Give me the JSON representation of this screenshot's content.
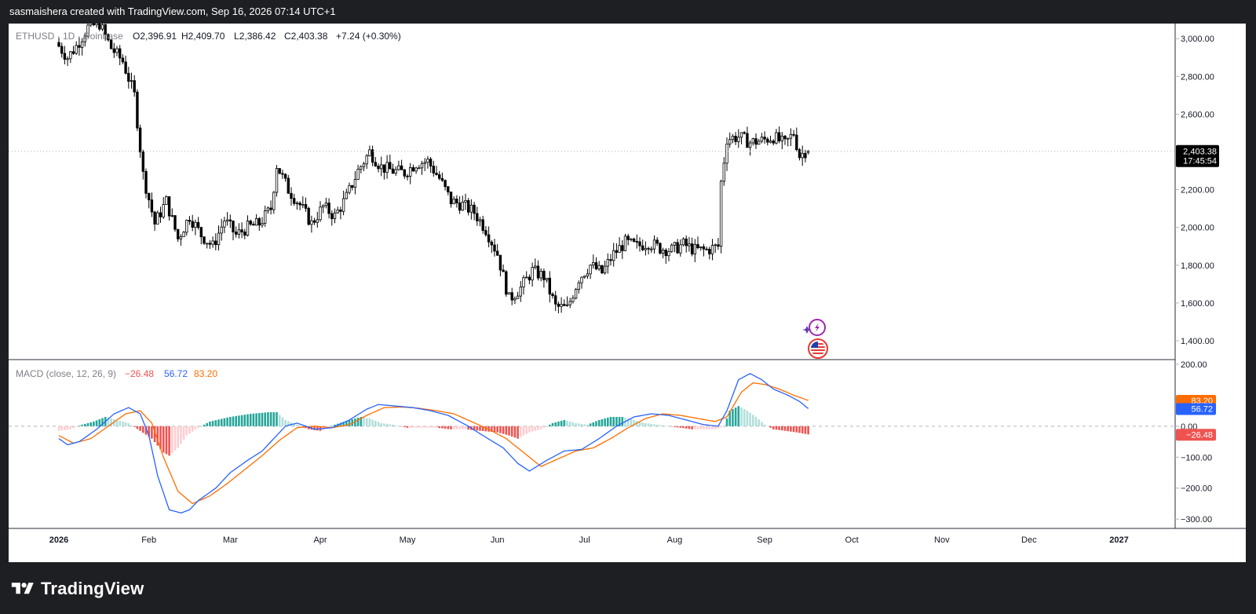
{
  "header": {
    "credit": "sasmaishera created with TradingView.com, Sep 16, 2026 07:14 UTC+1"
  },
  "footer": {
    "brand": "TradingView"
  },
  "legend": {
    "symbol": "ETHUSD · 1D · Coinbase",
    "open_label": "O",
    "open": "2,396.91",
    "high_label": "H",
    "high": "2,409.70",
    "low_label": "L",
    "low": "2,386.42",
    "close_label": "C",
    "close": "2,403.38",
    "change": "+7.24 (+0.30%)"
  },
  "macd_legend": {
    "title": "MACD (close, 12, 26, 9)",
    "hist": "−26.48",
    "macd": "56.72",
    "signal": "83.20"
  },
  "price_marker": {
    "value": "2,403.38",
    "countdown": "17:45:54"
  },
  "colors": {
    "up": "#26a69a",
    "down": "#ef5350",
    "candle": "#000000",
    "macd_line": "#2962ff",
    "signal_line": "#ff6d00",
    "hist_up_strong": "#26a69a",
    "hist_up_weak": "#b2dfdb",
    "hist_down_strong": "#ef5350",
    "hist_down_weak": "#ffcdd2"
  },
  "icons": [
    "lightning-event-icon",
    "us-flag-event-icon"
  ],
  "chart_data": [
    {
      "type": "candlestick",
      "name": "ETHUSD",
      "interval": "1D",
      "exchange": "Coinbase",
      "ylim": [
        1300,
        3080
      ],
      "y_ticks": [
        "3,000.00",
        "2,800.00",
        "2,600.00",
        "2,400.00",
        "2,200.00",
        "2,000.00",
        "1,800.00",
        "1,600.00",
        "1,400.00"
      ],
      "x_ticks": [
        "2026",
        "Feb",
        "Mar",
        "Apr",
        "May",
        "Jun",
        "Jul",
        "Aug",
        "Sep",
        "Oct",
        "Nov",
        "Dec",
        "2027"
      ],
      "anchors": [
        [
          "Jan 1",
          2980
        ],
        [
          "Jan 5",
          2900
        ],
        [
          "Jan 8",
          2960
        ],
        [
          "Jan 12",
          3060
        ],
        [
          "Jan 16",
          3080
        ],
        [
          "Jan 20",
          2950
        ],
        [
          "Jan 24",
          2880
        ],
        [
          "Jan 28",
          2700
        ],
        [
          "Jan 31",
          2280
        ],
        [
          "Feb 4",
          2020
        ],
        [
          "Feb 8",
          2140
        ],
        [
          "Feb 12",
          1940
        ],
        [
          "Feb 16",
          2060
        ],
        [
          "Feb 20",
          1960
        ],
        [
          "Feb 24",
          1900
        ],
        [
          "Feb 28",
          2040
        ],
        [
          "Mar 4",
          1960
        ],
        [
          "Mar 8",
          2000
        ],
        [
          "Mar 12",
          2020
        ],
        [
          "Mar 16",
          2100
        ],
        [
          "Mar 18",
          2330
        ],
        [
          "Mar 22",
          2200
        ],
        [
          "Mar 26",
          2120
        ],
        [
          "Mar 30",
          2020
        ],
        [
          "Apr 3",
          2110
        ],
        [
          "Apr 7",
          2060
        ],
        [
          "Apr 11",
          2160
        ],
        [
          "Apr 15",
          2300
        ],
        [
          "Apr 19",
          2400
        ],
        [
          "Apr 23",
          2320
        ],
        [
          "Apr 27",
          2300
        ],
        [
          "May 1",
          2290
        ],
        [
          "May 5",
          2340
        ],
        [
          "May 9",
          2350
        ],
        [
          "May 13",
          2260
        ],
        [
          "May 17",
          2140
        ],
        [
          "May 21",
          2120
        ],
        [
          "May 25",
          2080
        ],
        [
          "May 29",
          1990
        ],
        [
          "Jun 2",
          1860
        ],
        [
          "Jun 6",
          1620
        ],
        [
          "Jun 10",
          1680
        ],
        [
          "Jun 14",
          1770
        ],
        [
          "Jun 18",
          1740
        ],
        [
          "Jun 22",
          1580
        ],
        [
          "Jun 26",
          1570
        ],
        [
          "Jun 30",
          1730
        ],
        [
          "Jul 4",
          1800
        ],
        [
          "Jul 8",
          1760
        ],
        [
          "Jul 12",
          1860
        ],
        [
          "Jul 16",
          1920
        ],
        [
          "Jul 20",
          1900
        ],
        [
          "Jul 24",
          1920
        ],
        [
          "Jul 28",
          1890
        ],
        [
          "Aug 1",
          1880
        ],
        [
          "Aug 5",
          1910
        ],
        [
          "Aug 9",
          1880
        ],
        [
          "Aug 13",
          1880
        ],
        [
          "Aug 17",
          1900
        ],
        [
          "Aug 18",
          2240
        ],
        [
          "Aug 20",
          2470
        ],
        [
          "Aug 24",
          2480
        ],
        [
          "Aug 28",
          2450
        ],
        [
          "Sep 1",
          2460
        ],
        [
          "Sep 5",
          2480
        ],
        [
          "Sep 9",
          2440
        ],
        [
          "Sep 12",
          2500
        ],
        [
          "Sep 14",
          2380
        ],
        [
          "Sep 16",
          2403.38
        ]
      ],
      "last": {
        "open": 2396.91,
        "high": 2409.7,
        "low": 2386.42,
        "close": 2403.38
      }
    },
    {
      "type": "line+bar",
      "name": "MACD (close, 12, 26, 9)",
      "ylim": [
        -330,
        215
      ],
      "y_ticks": [
        "200.00",
        "0.00",
        "−100.00",
        "−200.00",
        "−300.00"
      ],
      "series": [
        {
          "name": "MACD",
          "values": [
            [
              "Jan 1",
              -40
            ],
            [
              "Jan 4",
              -60
            ],
            [
              "Jan 8",
              -50
            ],
            [
              "Jan 14",
              -10
            ],
            [
              "Jan 20",
              40
            ],
            [
              "Jan 25",
              60
            ],
            [
              "Jan 29",
              40
            ],
            [
              "Feb 1",
              -30
            ],
            [
              "Feb 4",
              -160
            ],
            [
              "Feb 8",
              -270
            ],
            [
              "Feb 12",
              -280
            ],
            [
              "Feb 15",
              -270
            ],
            [
              "Feb 18",
              -240
            ],
            [
              "Feb 24",
              -200
            ],
            [
              "Mar 1",
              -150
            ],
            [
              "Mar 7",
              -110
            ],
            [
              "Mar 12",
              -80
            ],
            [
              "Mar 16",
              -40
            ],
            [
              "Mar 20",
              0
            ],
            [
              "Mar 24",
              10
            ],
            [
              "Mar 30",
              -10
            ],
            [
              "Apr 5",
              -5
            ],
            [
              "Apr 11",
              20
            ],
            [
              "Apr 17",
              55
            ],
            [
              "Apr 21",
              70
            ],
            [
              "Apr 27",
              65
            ],
            [
              "May 3",
              60
            ],
            [
              "May 9",
              50
            ],
            [
              "May 15",
              35
            ],
            [
              "May 21",
              5
            ],
            [
              "May 27",
              -30
            ],
            [
              "Jun 3",
              -70
            ],
            [
              "Jun 8",
              -120
            ],
            [
              "Jun 12",
              -145
            ],
            [
              "Jun 18",
              -110
            ],
            [
              "Jun 24",
              -80
            ],
            [
              "Jun 30",
              -75
            ],
            [
              "Jul 6",
              -40
            ],
            [
              "Jul 12",
              0
            ],
            [
              "Jul 18",
              30
            ],
            [
              "Jul 24",
              40
            ],
            [
              "Jul 30",
              35
            ],
            [
              "Aug 5",
              20
            ],
            [
              "Aug 11",
              5
            ],
            [
              "Aug 16",
              0
            ],
            [
              "Aug 19",
              50
            ],
            [
              "Aug 23",
              150
            ],
            [
              "Aug 27",
              170
            ],
            [
              "Aug 31",
              150
            ],
            [
              "Sep 4",
              120
            ],
            [
              "Sep 9",
              100
            ],
            [
              "Sep 13",
              80
            ],
            [
              "Sep 16",
              56.72
            ]
          ]
        },
        {
          "name": "Signal",
          "values": [
            [
              "Jan 1",
              -30
            ],
            [
              "Jan 6",
              -55
            ],
            [
              "Jan 12",
              -40
            ],
            [
              "Jan 18",
              0
            ],
            [
              "Jan 24",
              40
            ],
            [
              "Jan 29",
              50
            ],
            [
              "Feb 2",
              10
            ],
            [
              "Feb 6",
              -100
            ],
            [
              "Feb 11",
              -210
            ],
            [
              "Feb 16",
              -250
            ],
            [
              "Feb 22",
              -225
            ],
            [
              "Feb 28",
              -185
            ],
            [
              "Mar 6",
              -140
            ],
            [
              "Mar 12",
              -95
            ],
            [
              "Mar 18",
              -45
            ],
            [
              "Mar 24",
              -5
            ],
            [
              "Mar 30",
              0
            ],
            [
              "Apr 5",
              -5
            ],
            [
              "Apr 11",
              5
            ],
            [
              "Apr 17",
              35
            ],
            [
              "Apr 23",
              60
            ],
            [
              "Apr 29",
              62
            ],
            [
              "May 5",
              58
            ],
            [
              "May 11",
              50
            ],
            [
              "May 17",
              40
            ],
            [
              "May 23",
              15
            ],
            [
              "May 29",
              -10
            ],
            [
              "Jun 4",
              -40
            ],
            [
              "Jun 10",
              -85
            ],
            [
              "Jun 16",
              -130
            ],
            [
              "Jun 22",
              -105
            ],
            [
              "Jun 28",
              -80
            ],
            [
              "Jul 4",
              -70
            ],
            [
              "Jul 10",
              -40
            ],
            [
              "Jul 16",
              -5
            ],
            [
              "Jul 22",
              25
            ],
            [
              "Jul 28",
              40
            ],
            [
              "Aug 3",
              35
            ],
            [
              "Aug 9",
              25
            ],
            [
              "Aug 15",
              15
            ],
            [
              "Aug 19",
              30
            ],
            [
              "Aug 24",
              110
            ],
            [
              "Aug 28",
              140
            ],
            [
              "Sep 1",
              135
            ],
            [
              "Sep 6",
              120
            ],
            [
              "Sep 11",
              100
            ],
            [
              "Sep 16",
              83.2
            ]
          ]
        },
        {
          "name": "Histogram",
          "values": [
            [
              "Jan 1",
              -15
            ],
            [
              "Jan 5",
              -10
            ],
            [
              "Jan 9",
              5
            ],
            [
              "Jan 13",
              15
            ],
            [
              "Jan 17",
              30
            ],
            [
              "Jan 21",
              20
            ],
            [
              "Jan 25",
              10
            ],
            [
              "Jan 29",
              -15
            ],
            [
              "Feb 2",
              -40
            ],
            [
              "Feb 6",
              -85
            ],
            [
              "Feb 8",
              -95
            ],
            [
              "Feb 11",
              -70
            ],
            [
              "Feb 14",
              -30
            ],
            [
              "Feb 18",
              -5
            ],
            [
              "Feb 22",
              15
            ],
            [
              "Mar 1",
              30
            ],
            [
              "Mar 8",
              40
            ],
            [
              "Mar 14",
              45
            ],
            [
              "Mar 17",
              45
            ],
            [
              "Mar 20",
              20
            ],
            [
              "Mar 24",
              5
            ],
            [
              "Mar 28",
              -10
            ],
            [
              "Apr 1",
              -15
            ],
            [
              "Apr 6",
              5
            ],
            [
              "Apr 11",
              20
            ],
            [
              "Apr 15",
              30
            ],
            [
              "Apr 18",
              25
            ],
            [
              "Apr 22",
              10
            ],
            [
              "Apr 26",
              5
            ],
            [
              "May 1",
              -5
            ],
            [
              "May 6",
              -5
            ],
            [
              "May 11",
              -5
            ],
            [
              "May 16",
              -10
            ],
            [
              "May 21",
              -10
            ],
            [
              "May 26",
              -15
            ],
            [
              "Jun 1",
              -20
            ],
            [
              "Jun 5",
              -30
            ],
            [
              "Jun 8",
              -40
            ],
            [
              "Jun 12",
              -20
            ],
            [
              "Jun 16",
              -10
            ],
            [
              "Jun 20",
              10
            ],
            [
              "Jun 24",
              20
            ],
            [
              "Jun 28",
              10
            ],
            [
              "Jul 2",
              5
            ],
            [
              "Jul 6",
              20
            ],
            [
              "Jul 10",
              30
            ],
            [
              "Jul 14",
              30
            ],
            [
              "Jul 18",
              20
            ],
            [
              "Jul 22",
              10
            ],
            [
              "Jul 26",
              5
            ],
            [
              "Jul 30",
              0
            ],
            [
              "Aug 3",
              -5
            ],
            [
              "Aug 7",
              -10
            ],
            [
              "Aug 11",
              -10
            ],
            [
              "Aug 15",
              -10
            ],
            [
              "Aug 18",
              0
            ],
            [
              "Aug 20",
              50
            ],
            [
              "Aug 23",
              65
            ],
            [
              "Aug 26",
              50
            ],
            [
              "Aug 29",
              30
            ],
            [
              "Sep 1",
              5
            ],
            [
              "Sep 4",
              -10
            ],
            [
              "Sep 8",
              -15
            ],
            [
              "Sep 12",
              -20
            ],
            [
              "Sep 16",
              -26.48
            ]
          ]
        }
      ],
      "zero_line": true
    }
  ]
}
